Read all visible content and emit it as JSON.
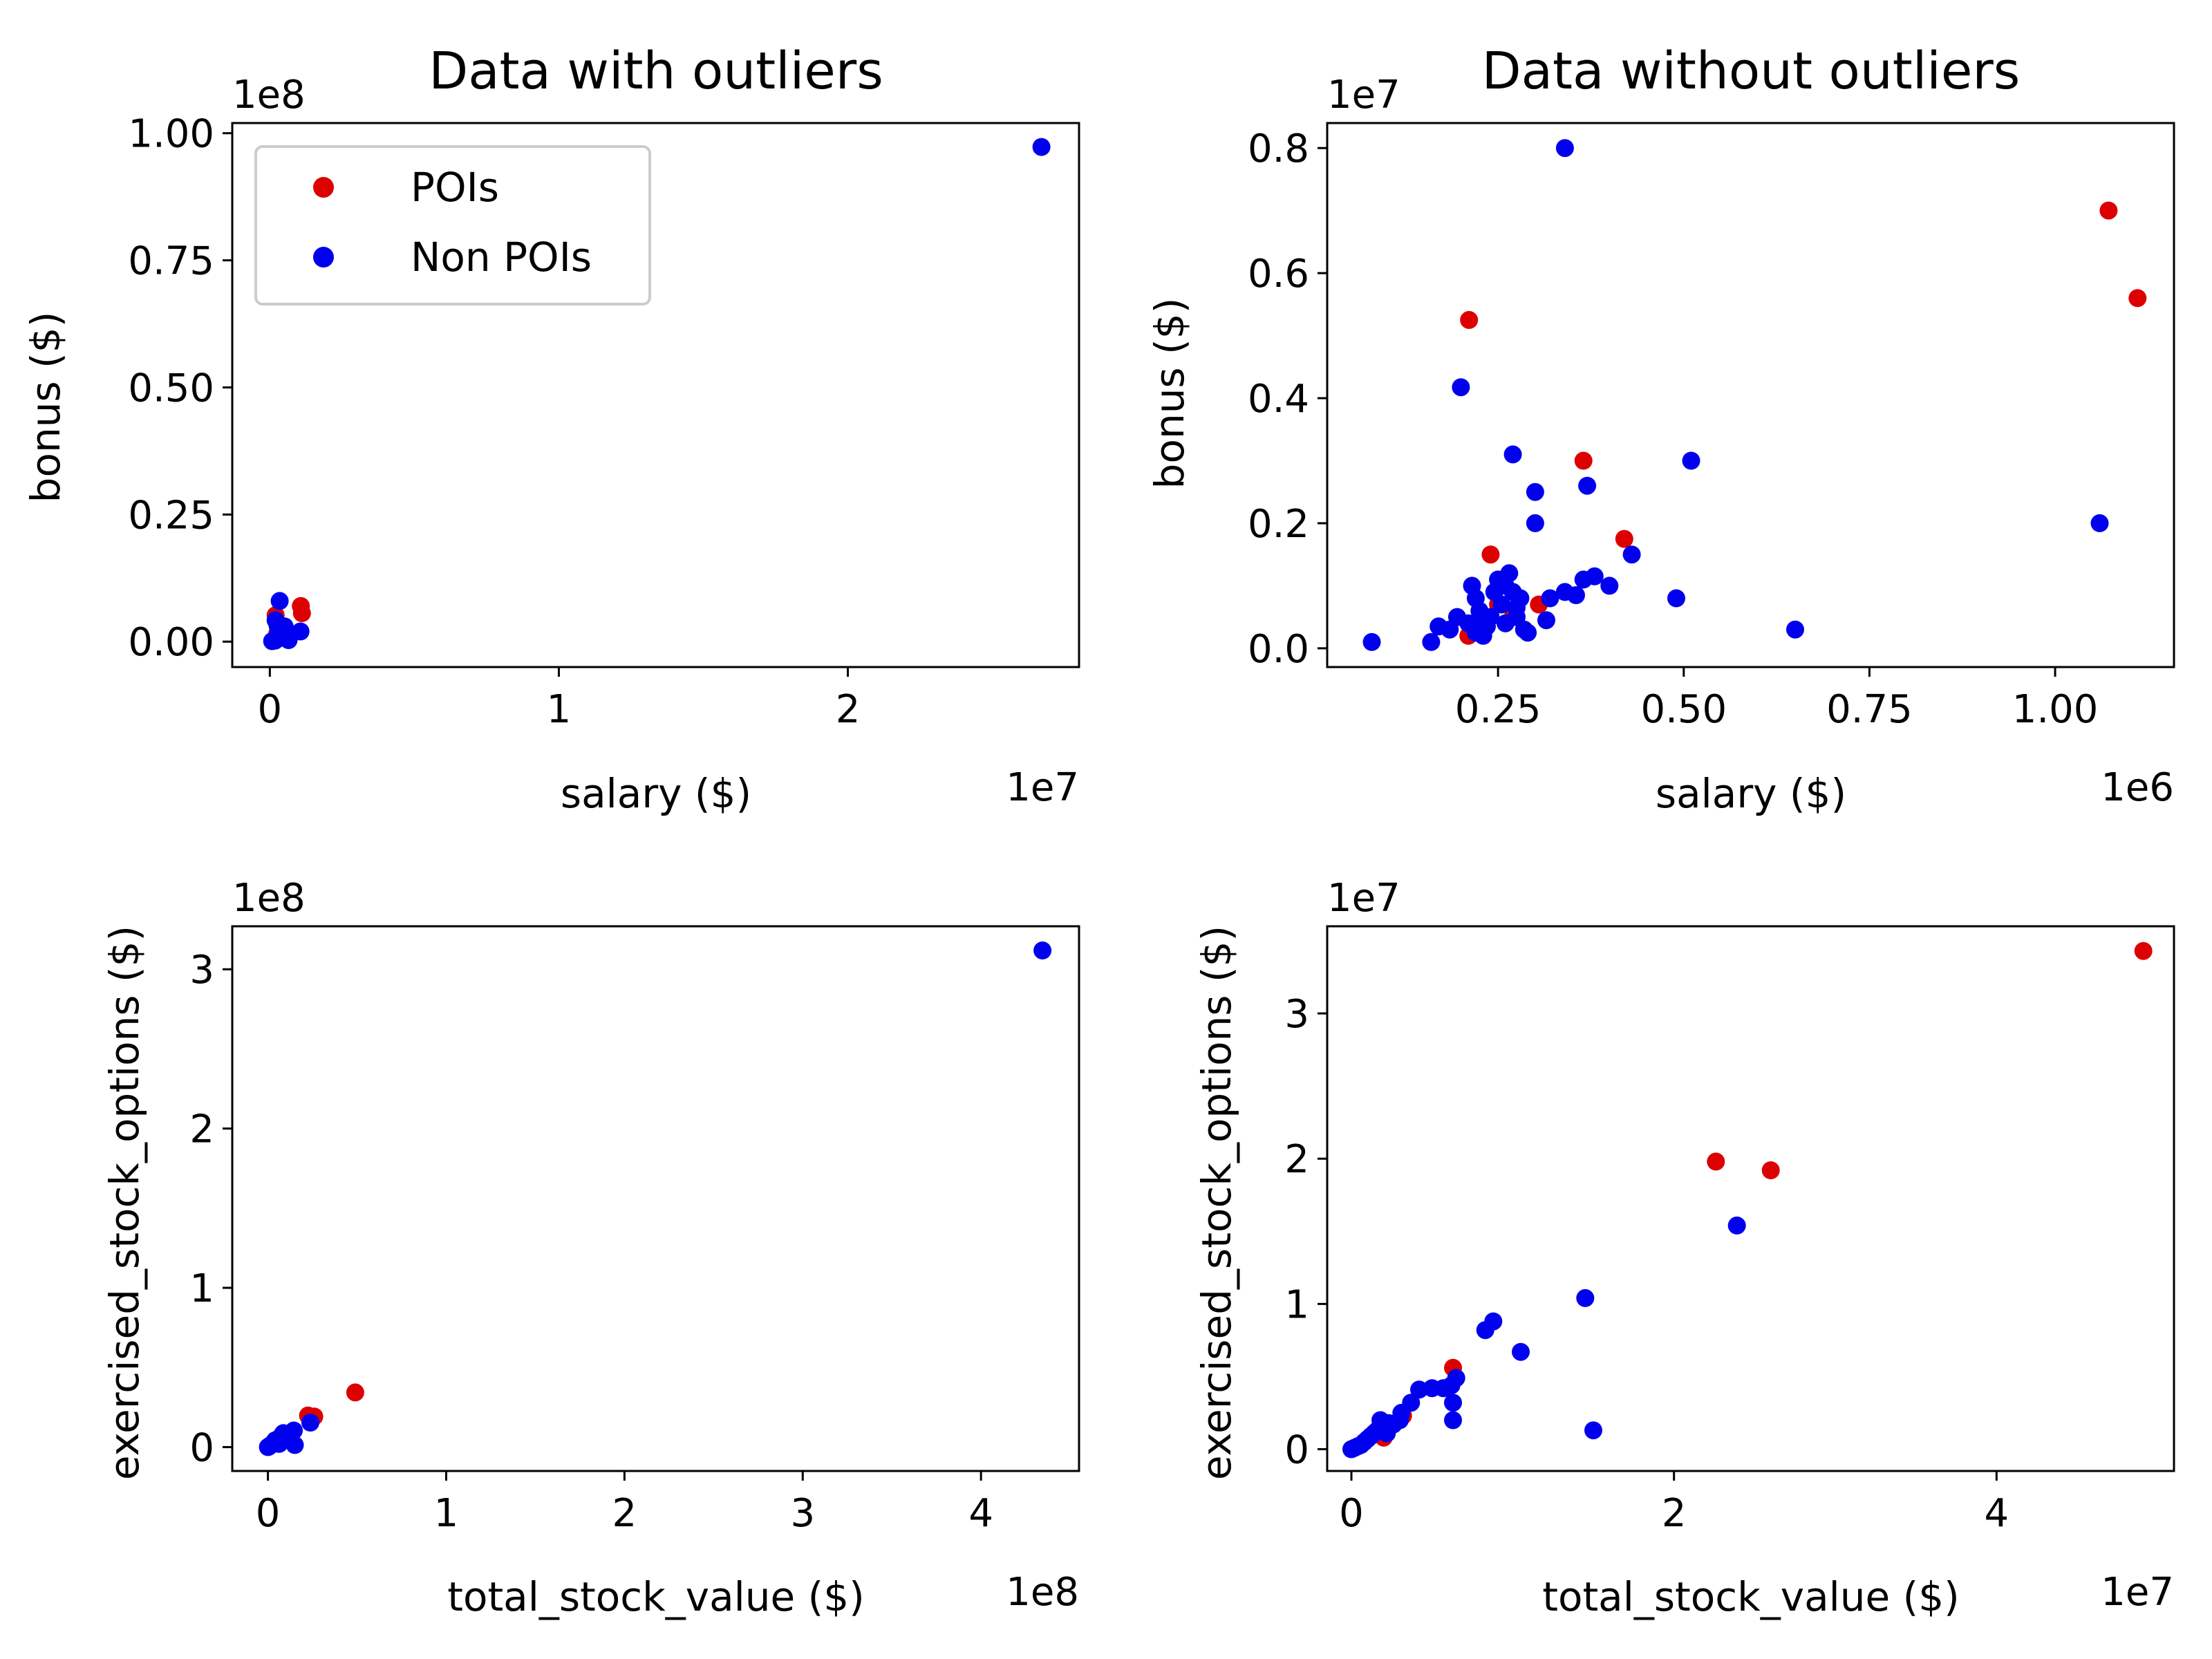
{
  "colors": {
    "poi": "#dd0000",
    "non_poi": "#0000ee"
  },
  "legend": {
    "poi_label": "POIs",
    "non_poi_label": "Non POIs"
  },
  "chart_data": [
    {
      "type": "scatter",
      "title": "Data with outliers",
      "xlabel": "salary ($)",
      "ylabel": "bonus ($)",
      "x_offset": "1e7",
      "y_offset": "1e8",
      "xlim": [
        -1300000,
        28000000
      ],
      "ylim": [
        -5000000,
        102000000
      ],
      "xticks": [
        {
          "v": 0,
          "label": "0"
        },
        {
          "v": 10000000,
          "label": "1"
        },
        {
          "v": 20000000,
          "label": "2"
        }
      ],
      "yticks": [
        {
          "v": 0,
          "label": "0.00"
        },
        {
          "v": 25000000,
          "label": "0.25"
        },
        {
          "v": 50000000,
          "label": "0.50"
        },
        {
          "v": 75000000,
          "label": "0.75"
        },
        {
          "v": 100000000,
          "label": "1.00"
        }
      ],
      "legend": true,
      "series": [
        {
          "name": "POIs",
          "color": "poi",
          "points": [
            [
              200000,
              5200000
            ],
            [
              1072000,
              7000000
            ],
            [
              1111000,
              5600000
            ],
            [
              250000,
              1500000
            ],
            [
              420000,
              1750000
            ],
            [
              370000,
              3000000
            ],
            [
              300000,
              700000
            ]
          ]
        },
        {
          "name": "Non POIs",
          "color": "non_poi",
          "points": [
            [
              26700000,
              97300000
            ],
            [
              340000,
              8000000
            ],
            [
              1060000,
              2000000
            ],
            [
              510000,
              3000000
            ],
            [
              650000,
              300000
            ],
            [
              80000,
              100000
            ],
            [
              200000,
              4200000
            ],
            [
              270000,
              3100000
            ],
            [
              300000,
              2500000
            ],
            [
              490000,
              800000
            ],
            [
              180000,
              200000
            ],
            [
              250000,
              500000
            ],
            [
              420000,
              1500000
            ]
          ]
        }
      ]
    },
    {
      "type": "scatter",
      "title": "Data without outliers",
      "xlabel": "salary ($)",
      "ylabel": "bonus ($)",
      "x_offset": "1e6",
      "y_offset": "1e7",
      "xlim": [
        20000,
        1160000
      ],
      "ylim": [
        -300000,
        8400000
      ],
      "xticks": [
        {
          "v": 250000,
          "label": "0.25"
        },
        {
          "v": 500000,
          "label": "0.50"
        },
        {
          "v": 750000,
          "label": "0.75"
        },
        {
          "v": 1000000,
          "label": "1.00"
        }
      ],
      "yticks": [
        {
          "v": 0,
          "label": "0.0"
        },
        {
          "v": 2000000,
          "label": "0.2"
        },
        {
          "v": 4000000,
          "label": "0.4"
        },
        {
          "v": 6000000,
          "label": "0.6"
        },
        {
          "v": 8000000,
          "label": "0.8"
        }
      ],
      "legend": false,
      "series": [
        {
          "name": "POIs",
          "color": "poi",
          "points": [
            [
              1072000,
              7000000
            ],
            [
              1111000,
              5600000
            ],
            [
              211000,
              5250000
            ],
            [
              365000,
              3000000
            ],
            [
              420000,
              1750000
            ],
            [
              240000,
              1500000
            ],
            [
              305000,
              700000
            ],
            [
              210000,
              200000
            ],
            [
              250000,
              700000
            ],
            [
              270000,
              500000
            ]
          ]
        },
        {
          "name": "Non POIs",
          "color": "non_poi",
          "points": [
            [
              340000,
              8000000
            ],
            [
              200000,
              4175000
            ],
            [
              270000,
              3100000
            ],
            [
              370000,
              2600000
            ],
            [
              300000,
              2500000
            ],
            [
              510000,
              3000000
            ],
            [
              300000,
              2000000
            ],
            [
              430000,
              1500000
            ],
            [
              1060000,
              2000000
            ],
            [
              650000,
              300000
            ],
            [
              490000,
              800000
            ],
            [
              400000,
              1000000
            ],
            [
              380000,
              1150000
            ],
            [
              365000,
              1100000
            ],
            [
              340000,
              900000
            ],
            [
              320000,
              800000
            ],
            [
              355000,
              850000
            ],
            [
              315000,
              450000
            ],
            [
              80000,
              100000
            ],
            [
              160000,
              100000
            ],
            [
              170000,
              350000
            ],
            [
              185000,
              300000
            ],
            [
              195000,
              500000
            ],
            [
              210000,
              400000
            ],
            [
              215000,
              1000000
            ],
            [
              220000,
              800000
            ],
            [
              225000,
              600000
            ],
            [
              230000,
              200000
            ],
            [
              235000,
              350000
            ],
            [
              240000,
              500000
            ],
            [
              245000,
              900000
            ],
            [
              250000,
              1100000
            ],
            [
              255000,
              700000
            ],
            [
              260000,
              400000
            ],
            [
              265000,
              1200000
            ],
            [
              270000,
              900000
            ],
            [
              275000,
              500000
            ],
            [
              280000,
              800000
            ],
            [
              285000,
              300000
            ],
            [
              290000,
              250000
            ],
            [
              260000,
              1000000
            ],
            [
              230000,
              500000
            ],
            [
              220000,
              250000
            ],
            [
              275000,
              650000
            ]
          ]
        }
      ]
    },
    {
      "type": "scatter",
      "title": "",
      "xlabel": "total_stock_value ($)",
      "ylabel": "exercised_stock_options ($)",
      "x_offset": "1e8",
      "y_offset": "1e8",
      "xlim": [
        -20000000,
        455000000
      ],
      "ylim": [
        -15000000,
        327000000
      ],
      "xticks": [
        {
          "v": 0,
          "label": "0"
        },
        {
          "v": 100000000,
          "label": "1"
        },
        {
          "v": 200000000,
          "label": "2"
        },
        {
          "v": 300000000,
          "label": "3"
        },
        {
          "v": 400000000,
          "label": "4"
        }
      ],
      "yticks": [
        {
          "v": 0,
          "label": "0"
        },
        {
          "v": 100000000,
          "label": "1"
        },
        {
          "v": 200000000,
          "label": "2"
        },
        {
          "v": 300000000,
          "label": "3"
        }
      ],
      "legend": false,
      "series": [
        {
          "name": "POIs",
          "color": "poi",
          "points": [
            [
              49000000,
              34300000
            ],
            [
              22500000,
              19800000
            ],
            [
              26000000,
              19200000
            ],
            [
              3000000,
              2300000
            ],
            [
              6300000,
              5600000
            ]
          ]
        },
        {
          "name": "Non POIs",
          "color": "non_poi",
          "points": [
            [
              434500000,
              311800000
            ],
            [
              23800000,
              15400000
            ],
            [
              15100000,
              1300000
            ],
            [
              14500000,
              10400000
            ],
            [
              10500000,
              6700000
            ],
            [
              8700000,
              8800000
            ],
            [
              8300000,
              8200000
            ],
            [
              6300000,
              2000000
            ],
            [
              6500000,
              4900000
            ],
            [
              5000000,
              4200000
            ],
            [
              4000000,
              4200000
            ],
            [
              3000000,
              2500000
            ],
            [
              2000000,
              1500000
            ],
            [
              1500000,
              1200000
            ],
            [
              1000000,
              800000
            ],
            [
              500000,
              300000
            ],
            [
              0,
              0
            ],
            [
              200000,
              100000
            ]
          ]
        }
      ]
    },
    {
      "type": "scatter",
      "title": "",
      "xlabel": "total_stock_value ($)",
      "ylabel": "exercised_stock_options ($)",
      "x_offset": "1e7",
      "y_offset": "1e7",
      "xlim": [
        -1500000,
        51000000
      ],
      "ylim": [
        -1500000,
        36000000
      ],
      "xticks": [
        {
          "v": 0,
          "label": "0"
        },
        {
          "v": 20000000,
          "label": "2"
        },
        {
          "v": 40000000,
          "label": "4"
        }
      ],
      "yticks": [
        {
          "v": 0,
          "label": "0"
        },
        {
          "v": 10000000,
          "label": "1"
        },
        {
          "v": 20000000,
          "label": "2"
        },
        {
          "v": 30000000,
          "label": "3"
        }
      ],
      "legend": false,
      "series": [
        {
          "name": "POIs",
          "color": "poi",
          "points": [
            [
              49100000,
              34300000
            ],
            [
              22600000,
              19800000
            ],
            [
              26000000,
              19200000
            ],
            [
              6300000,
              5600000
            ],
            [
              3200000,
              2300000
            ],
            [
              2000000,
              800000
            ],
            [
              1800000,
              1000000
            ]
          ]
        },
        {
          "name": "Non POIs",
          "color": "non_poi",
          "points": [
            [
              23900000,
              15400000
            ],
            [
              15000000,
              1300000
            ],
            [
              14500000,
              10400000
            ],
            [
              10500000,
              6700000
            ],
            [
              8800000,
              8800000
            ],
            [
              8300000,
              8200000
            ],
            [
              6300000,
              2000000
            ],
            [
              6300000,
              3200000
            ],
            [
              6500000,
              4900000
            ],
            [
              6200000,
              4400000
            ],
            [
              5700000,
              4200000
            ],
            [
              5000000,
              4200000
            ],
            [
              4200000,
              4100000
            ],
            [
              3700000,
              3200000
            ],
            [
              3100000,
              2500000
            ],
            [
              3000000,
              2000000
            ],
            [
              2600000,
              1700000
            ],
            [
              2300000,
              1800000
            ],
            [
              2000000,
              1500000
            ],
            [
              1800000,
              2000000
            ],
            [
              1600000,
              1300000
            ],
            [
              1400000,
              1100000
            ],
            [
              1200000,
              900000
            ],
            [
              1000000,
              700000
            ],
            [
              800000,
              500000
            ],
            [
              600000,
              300000
            ],
            [
              400000,
              200000
            ],
            [
              200000,
              100000
            ],
            [
              0,
              0
            ],
            [
              2200000,
              1100000
            ]
          ]
        }
      ]
    }
  ]
}
